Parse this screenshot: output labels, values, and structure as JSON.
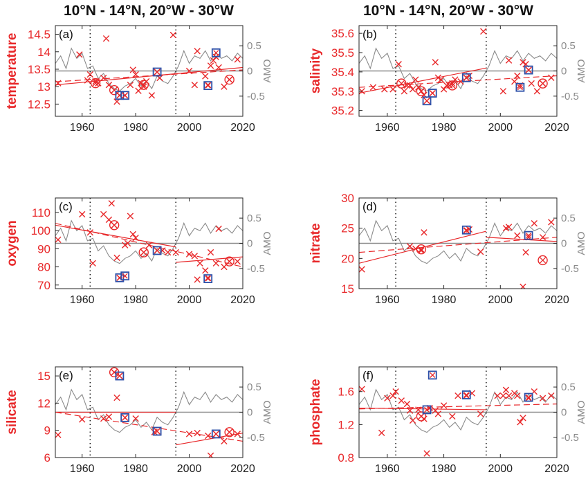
{
  "column_titles": [
    "10°N - 14°N, 20°W - 30°W",
    "10°N - 14°N, 20°W - 30°W"
  ],
  "colors": {
    "data": "#e8282a",
    "amo": "#8a8a8a",
    "box": "#2c4fa8",
    "axis": "#222222"
  },
  "chart_data": [
    {
      "type": "scatter",
      "panel_label": "(a)",
      "ylabel": "temperature",
      "xlim": [
        1950,
        2020
      ],
      "ylim": [
        12.15,
        14.75
      ],
      "yticks": [
        12.5,
        13,
        13.5,
        14,
        14.5
      ],
      "xticks": [
        1960,
        1980,
        2000,
        2020
      ],
      "y2label": "AMO",
      "y2lim": [
        -0.9,
        0.9
      ],
      "y2ticks": [
        -0.5,
        0,
        0.5
      ],
      "vlines": [
        1963,
        1995
      ],
      "points": [
        [
          1951,
          13.1
        ],
        [
          1959,
          13.92
        ],
        [
          1962,
          13.18
        ],
        [
          1963,
          13.35
        ],
        [
          1965,
          13.15
        ],
        [
          1966,
          13.1
        ],
        [
          1968,
          13.25
        ],
        [
          1969,
          14.38
        ],
        [
          1970,
          13.05
        ],
        [
          1972,
          12.9
        ],
        [
          1973,
          12.57
        ],
        [
          1974,
          12.75
        ],
        [
          1976,
          12.75
        ],
        [
          1978,
          13.05
        ],
        [
          1979,
          13.48
        ],
        [
          1980,
          13.35
        ],
        [
          1981,
          12.88
        ],
        [
          1982,
          13.1
        ],
        [
          1983,
          13.0
        ],
        [
          1984,
          13.15
        ],
        [
          1986,
          12.75
        ],
        [
          1988,
          13.42
        ],
        [
          1989,
          13.25
        ],
        [
          1994,
          14.48
        ],
        [
          2000,
          13.45
        ],
        [
          2002,
          13.05
        ],
        [
          2003,
          14.02
        ],
        [
          2006,
          13.3
        ],
        [
          2007,
          13.05
        ],
        [
          2008,
          13.6
        ],
        [
          2009,
          13.75
        ],
        [
          2010,
          13.85
        ],
        [
          2011,
          13.55
        ],
        [
          2013,
          13.0
        ],
        [
          2015,
          13.2
        ],
        [
          2018,
          13.78
        ]
      ],
      "circled": [
        [
          1965,
          13.1
        ],
        [
          1972,
          12.9
        ],
        [
          1983,
          13.05
        ],
        [
          2015,
          13.2
        ]
      ],
      "boxed": [
        [
          1974,
          12.75
        ],
        [
          1976,
          12.75
        ],
        [
          1988,
          13.42
        ],
        [
          2007,
          13.03
        ],
        [
          2010,
          13.97
        ]
      ],
      "fit_solid": [
        [
          1950,
          13.05
        ],
        [
          2020,
          13.55
        ]
      ],
      "fit_dashed": [
        [
          1950,
          13.14
        ],
        [
          2020,
          13.48
        ]
      ],
      "amo_ref": 0
    },
    {
      "type": "scatter",
      "panel_label": "(b)",
      "ylabel": "salinity",
      "xlim": [
        1950,
        2020
      ],
      "ylim": [
        35.17,
        35.64
      ],
      "yticks": [
        35.2,
        35.3,
        35.4,
        35.5,
        35.6
      ],
      "xticks": [
        1960,
        1980,
        2000,
        2020
      ],
      "y2label": "AMO",
      "y2lim": [
        -0.9,
        0.9
      ],
      "y2ticks": [
        -0.5,
        0,
        0.5
      ],
      "vlines": [
        1963,
        1995
      ],
      "points": [
        [
          1951,
          35.3
        ],
        [
          1955,
          35.32
        ],
        [
          1959,
          35.31
        ],
        [
          1962,
          35.31
        ],
        [
          1964,
          35.44
        ],
        [
          1966,
          35.3
        ],
        [
          1967,
          35.33
        ],
        [
          1968,
          35.33
        ],
        [
          1969,
          35.31
        ],
        [
          1970,
          35.36
        ],
        [
          1971,
          35.32
        ],
        [
          1972,
          35.3
        ],
        [
          1973,
          35.28
        ],
        [
          1974,
          35.25
        ],
        [
          1976,
          35.29
        ],
        [
          1977,
          35.45
        ],
        [
          1978,
          35.37
        ],
        [
          1979,
          35.36
        ],
        [
          1980,
          35.31
        ],
        [
          1981,
          35.33
        ],
        [
          1982,
          35.33
        ],
        [
          1983,
          35.34
        ],
        [
          1984,
          35.36
        ],
        [
          1986,
          35.35
        ],
        [
          1988,
          35.37
        ],
        [
          1989,
          35.38
        ],
        [
          1994,
          35.61
        ],
        [
          2001,
          35.3
        ],
        [
          2003,
          35.46
        ],
        [
          2005,
          35.35
        ],
        [
          2006,
          35.38
        ],
        [
          2007,
          35.33
        ],
        [
          2008,
          35.45
        ],
        [
          2009,
          35.44
        ],
        [
          2010,
          35.41
        ],
        [
          2011,
          35.34
        ],
        [
          2013,
          35.3
        ],
        [
          2015,
          35.34
        ],
        [
          2018,
          35.37
        ]
      ],
      "circled": [
        [
          1965,
          35.34
        ],
        [
          1972,
          35.3
        ],
        [
          1983,
          35.33
        ],
        [
          2015,
          35.34
        ]
      ],
      "boxed": [
        [
          1974,
          35.25
        ],
        [
          1976,
          35.29
        ],
        [
          1988,
          35.37
        ],
        [
          2007,
          35.32
        ],
        [
          2010,
          35.41
        ]
      ],
      "fit_solid": [
        [
          1950,
          35.29
        ],
        [
          1995,
          35.42
        ]
      ],
      "fit_dashed": [
        [
          1950,
          35.32
        ],
        [
          2020,
          35.38
        ]
      ],
      "amo_ref": 0
    },
    {
      "type": "scatter",
      "panel_label": "(c)",
      "ylabel": "oxygen",
      "xlim": [
        1950,
        2020
      ],
      "ylim": [
        68,
        118
      ],
      "yticks": [
        70,
        80,
        90,
        100,
        110
      ],
      "xticks": [
        1960,
        1980,
        2000,
        2020
      ],
      "y2label": "AMO",
      "y2lim": [
        -0.9,
        0.9
      ],
      "y2ticks": [
        -0.5,
        0,
        0.5
      ],
      "vlines": [
        1963,
        1995
      ],
      "points": [
        [
          1951,
          95
        ],
        [
          1960,
          109
        ],
        [
          1963,
          99
        ],
        [
          1964,
          82
        ],
        [
          1968,
          109
        ],
        [
          1970,
          106
        ],
        [
          1971,
          115
        ],
        [
          1972,
          103
        ],
        [
          1973,
          85
        ],
        [
          1974,
          74
        ],
        [
          1976,
          92
        ],
        [
          1977,
          93
        ],
        [
          1978,
          108
        ],
        [
          1979,
          98
        ],
        [
          1980,
          96
        ],
        [
          1983,
          88
        ],
        [
          1985,
          92
        ],
        [
          1988,
          89
        ],
        [
          1990,
          89
        ],
        [
          1992,
          88
        ],
        [
          1995,
          88
        ],
        [
          2000,
          87
        ],
        [
          2002,
          86
        ],
        [
          2003,
          73
        ],
        [
          2004,
          82
        ],
        [
          2006,
          78
        ],
        [
          2007,
          74
        ],
        [
          2008,
          88
        ],
        [
          2010,
          82
        ],
        [
          2011,
          101
        ],
        [
          2013,
          80
        ],
        [
          2015,
          83
        ],
        [
          2018,
          83
        ]
      ],
      "circled": [
        [
          1972,
          103
        ],
        [
          1983,
          88
        ],
        [
          2015,
          83
        ]
      ],
      "boxed": [
        [
          1974,
          74
        ],
        [
          1976,
          75
        ],
        [
          1988,
          89
        ],
        [
          2007,
          73.5
        ]
      ],
      "fit_solid": [
        [
          1950,
          103
        ],
        [
          1995,
          91
        ]
      ],
      "fit_dashed": [
        [
          1950,
          104
        ],
        [
          2020,
          80
        ]
      ],
      "fit_post": [
        [
          1995,
          82.5
        ],
        [
          2020,
          85.5
        ]
      ],
      "amo_ref": 0
    },
    {
      "type": "scatter",
      "panel_label": "(d)",
      "ylabel": "nitrate",
      "xlim": [
        1950,
        2020
      ],
      "ylim": [
        15,
        30
      ],
      "yticks": [
        15,
        20,
        25,
        30
      ],
      "xticks": [
        1960,
        1980,
        2000,
        2020
      ],
      "y2label": "AMO",
      "y2lim": [
        -0.9,
        0.9
      ],
      "y2ticks": [
        -0.5,
        0,
        0.5
      ],
      "vlines": [
        1963,
        1995
      ],
      "points": [
        [
          1951,
          18.2
        ],
        [
          1968,
          22.0
        ],
        [
          1970,
          21.6
        ],
        [
          1972,
          21.3
        ],
        [
          1973,
          24.3
        ],
        [
          1988,
          24.6
        ],
        [
          1989,
          24.8
        ],
        [
          1993,
          21.1
        ],
        [
          2002,
          25.0
        ],
        [
          2003,
          25.2
        ],
        [
          2006,
          23.8
        ],
        [
          2008,
          15.3
        ],
        [
          2009,
          21.0
        ],
        [
          2010,
          23.5
        ],
        [
          2012,
          25.8
        ],
        [
          2015,
          23.5
        ],
        [
          2018,
          26.0
        ]
      ],
      "circled": [
        [
          1972,
          21.5
        ],
        [
          2015,
          19.7
        ]
      ],
      "boxed": [
        [
          1988,
          24.7
        ],
        [
          2010,
          23.8
        ]
      ],
      "fit_solid": [
        [
          1950,
          19.2
        ],
        [
          1995,
          24.5
        ]
      ],
      "fit_dashed": [
        [
          1950,
          21.0
        ],
        [
          2020,
          23.5
        ]
      ],
      "fit_post": [
        [
          1995,
          23.5
        ],
        [
          2020,
          22.8
        ]
      ],
      "amo_ref": 0
    },
    {
      "type": "scatter",
      "panel_label": "(e)",
      "ylabel": "silicate",
      "xlim": [
        1950,
        2020
      ],
      "ylim": [
        6,
        16
      ],
      "yticks": [
        6,
        9,
        12,
        15
      ],
      "xticks": [
        1960,
        1980,
        2000,
        2020
      ],
      "y2label": "AMO",
      "y2lim": [
        -0.9,
        0.9
      ],
      "y2ticks": [
        -0.5,
        0,
        0.5
      ],
      "vlines": [
        1963,
        1995
      ],
      "points": [
        [
          1951,
          8.5
        ],
        [
          1960,
          10.2
        ],
        [
          1968,
          10.3
        ],
        [
          1970,
          10.5
        ],
        [
          1972,
          15.4
        ],
        [
          1973,
          12.6
        ],
        [
          1974,
          15.0
        ],
        [
          1976,
          10.4
        ],
        [
          1980,
          10.3
        ],
        [
          1987,
          8.8
        ],
        [
          1988,
          8.9
        ],
        [
          2000,
          8.6
        ],
        [
          2003,
          8.7
        ],
        [
          2007,
          8.4
        ],
        [
          2008,
          6.2
        ],
        [
          2010,
          8.6
        ],
        [
          2013,
          7.8
        ],
        [
          2015,
          8.8
        ],
        [
          2018,
          8.6
        ]
      ],
      "circled": [
        [
          1972,
          15.4
        ],
        [
          2015,
          8.8
        ]
      ],
      "boxed": [
        [
          1974,
          15.0
        ],
        [
          1976,
          10.4
        ],
        [
          1988,
          8.9
        ],
        [
          2010,
          8.6
        ]
      ],
      "fit_solid": [
        [
          1950,
          11.0
        ],
        [
          1995,
          11.0
        ]
      ],
      "fit_dashed": [
        [
          1950,
          11.0
        ],
        [
          2020,
          7.8
        ]
      ],
      "fit_post": [
        [
          1995,
          7.4
        ],
        [
          2020,
          8.7
        ]
      ],
      "amo_ref": 0
    },
    {
      "type": "scatter",
      "panel_label": "(f)",
      "ylabel": "phosphate",
      "xlim": [
        1950,
        2020
      ],
      "ylim": [
        0.8,
        1.9
      ],
      "yticks": [
        0.8,
        1.2,
        1.6
      ],
      "xticks": [
        1960,
        1980,
        2000,
        2020
      ],
      "y2label": "AMO",
      "y2lim": [
        -0.9,
        0.9
      ],
      "y2ticks": [
        -0.5,
        0,
        0.5
      ],
      "vlines": [
        1963,
        1995
      ],
      "points": [
        [
          1951,
          1.63
        ],
        [
          1958,
          1.1
        ],
        [
          1960,
          1.52
        ],
        [
          1962,
          1.55
        ],
        [
          1963,
          1.6
        ],
        [
          1965,
          1.49
        ],
        [
          1967,
          1.45
        ],
        [
          1968,
          1.37
        ],
        [
          1969,
          1.25
        ],
        [
          1971,
          1.38
        ],
        [
          1972,
          1.3
        ],
        [
          1973,
          1.27
        ],
        [
          1974,
          0.85
        ],
        [
          1975,
          1.4
        ],
        [
          1977,
          1.37
        ],
        [
          1978,
          1.33
        ],
        [
          1980,
          1.43
        ],
        [
          1983,
          1.3
        ],
        [
          1985,
          1.55
        ],
        [
          1988,
          1.55
        ],
        [
          1990,
          1.58
        ],
        [
          1993,
          1.33
        ],
        [
          1999,
          1.55
        ],
        [
          2001,
          1.55
        ],
        [
          2002,
          1.62
        ],
        [
          2003,
          1.55
        ],
        [
          2005,
          1.58
        ],
        [
          2006,
          1.55
        ],
        [
          2007,
          1.23
        ],
        [
          2008,
          1.28
        ],
        [
          2010,
          1.52
        ],
        [
          2012,
          1.6
        ],
        [
          2015,
          1.52
        ],
        [
          2018,
          1.55
        ]
      ],
      "circled": [
        [
          1972,
          1.3
        ]
      ],
      "boxed": [
        [
          1974,
          1.38
        ],
        [
          1976,
          1.8
        ],
        [
          1988,
          1.56
        ],
        [
          2010,
          1.53
        ]
      ],
      "fit_solid": [
        [
          1950,
          1.4
        ],
        [
          1995,
          1.38
        ]
      ],
      "fit_dashed": [
        [
          1950,
          1.39
        ],
        [
          2020,
          1.45
        ]
      ],
      "amo_ref": 0
    }
  ],
  "amo_series": {
    "years": [
      1950,
      1952,
      1954,
      1956,
      1958,
      1960,
      1962,
      1964,
      1966,
      1968,
      1970,
      1972,
      1974,
      1976,
      1978,
      1980,
      1982,
      1984,
      1986,
      1988,
      1990,
      1992,
      1994,
      1996,
      1998,
      2000,
      2002,
      2004,
      2006,
      2008,
      2010,
      2012,
      2014,
      2016,
      2018,
      2020
    ],
    "values": [
      0.15,
      0.3,
      0.05,
      0.45,
      0.25,
      0.35,
      0.05,
      0.1,
      -0.15,
      -0.05,
      -0.25,
      -0.35,
      -0.4,
      -0.3,
      -0.25,
      -0.15,
      -0.3,
      -0.2,
      -0.35,
      -0.1,
      -0.2,
      -0.25,
      -0.1,
      0.1,
      0.4,
      0.15,
      0.3,
      0.25,
      0.4,
      0.2,
      0.35,
      0.25,
      0.3,
      0.2,
      0.35,
      0.25
    ]
  }
}
